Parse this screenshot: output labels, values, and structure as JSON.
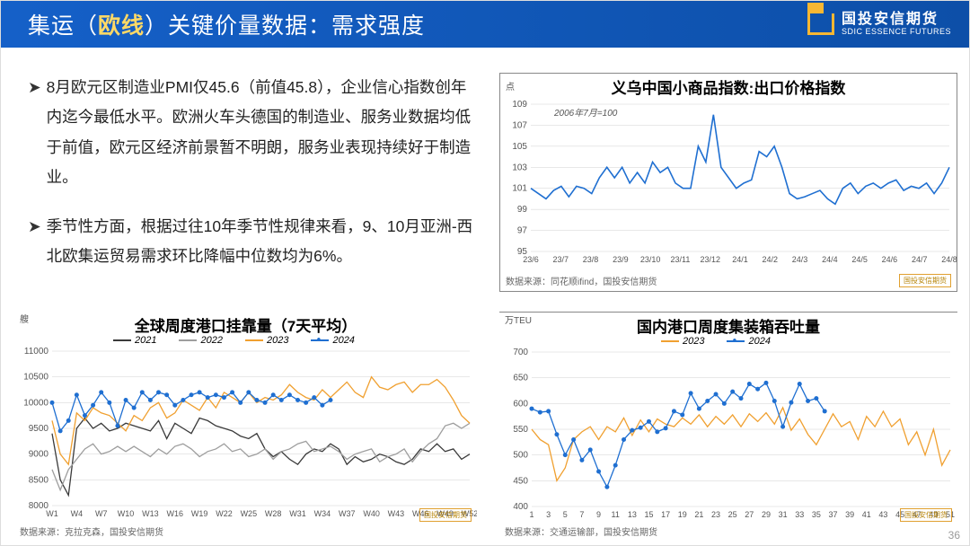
{
  "header": {
    "title_pre": "集运（",
    "title_hl": "欧线",
    "title_post": "）关键价量数据：需求强度",
    "logo_cn": "国投安信期货",
    "logo_en": "SDIC ESSENCE FUTURES"
  },
  "bullets": [
    "8月欧元区制造业PMI仅45.6（前值45.8），企业信心指数创年内迄今最低水平。欧洲火车头德国的制造业、服务业数据均低于前值，欧元区经济前景暂不明朗，服务业表现持续好于制造业。",
    "季节性方面，根据过往10年季节性规律来看，9、10月亚洲-西北欧集运贸易需求环比降幅中位数均为6%。"
  ],
  "chart1": {
    "type": "line",
    "title": "义乌中国小商品指数:出口价格指数",
    "y_unit": "点",
    "sub": "2006年7月=100",
    "source": "数据来源：同花顺ifind，国投安信期货",
    "mini_logo": "国投安信期货",
    "x_labels": [
      "23/6",
      "23/7",
      "23/8",
      "23/9",
      "23/10",
      "23/11",
      "23/12",
      "24/1",
      "24/2",
      "24/3",
      "24/4",
      "24/5",
      "24/6",
      "24/7",
      "24/8"
    ],
    "ylim": [
      95,
      109
    ],
    "ytick_step": 2,
    "series_color": "#1f6fd1",
    "line_width": 1.6,
    "grid_color": "#d0d0d0",
    "values": [
      101,
      100.5,
      100,
      100.8,
      101.2,
      100.2,
      101.2,
      101,
      100.5,
      102,
      103,
      102,
      103,
      101.5,
      102.5,
      101.5,
      103.5,
      102.5,
      103,
      101.5,
      101,
      101,
      105,
      103.5,
      108,
      103,
      102,
      101,
      101.5,
      101.8,
      104.5,
      104,
      105,
      103,
      100.5,
      100,
      100.2,
      100.5,
      100.8,
      100,
      99.5,
      101,
      101.5,
      100.5,
      101.2,
      101.5,
      101,
      101.5,
      101.8,
      100.8,
      101.2,
      101,
      101.5,
      100.5,
      101.5,
      103
    ]
  },
  "chart2": {
    "type": "line",
    "title": "全球周度港口挂靠量（7天平均）",
    "y_unit": "艘",
    "source": "数据来源：克拉克森，国投安信期货",
    "mini_logo": "国投安信期货",
    "x_labels": [
      "W1",
      "W4",
      "W7",
      "W10",
      "W13",
      "W16",
      "W19",
      "W22",
      "W25",
      "W28",
      "W31",
      "W34",
      "W37",
      "W40",
      "W43",
      "W46",
      "W49",
      "W52"
    ],
    "ylim": [
      8000,
      11000
    ],
    "ytick_step": 500,
    "grid_color": "#d0d0d0",
    "legend": [
      {
        "label": "2021",
        "color": "#3a3a3a",
        "marker": false
      },
      {
        "label": "2022",
        "color": "#9e9e9e",
        "marker": false
      },
      {
        "label": "2023",
        "color": "#f0a030",
        "marker": false
      },
      {
        "label": "2024",
        "color": "#1f6fd1",
        "marker": true
      }
    ],
    "series": {
      "2021": [
        9400,
        8500,
        8200,
        9500,
        9700,
        9500,
        9600,
        9450,
        9500,
        9600,
        9550,
        9500,
        9450,
        9650,
        9300,
        9600,
        9500,
        9400,
        9700,
        9650,
        9550,
        9500,
        9450,
        9350,
        9300,
        9400,
        9100,
        8950,
        9050,
        8900,
        8800,
        9000,
        9100,
        9050,
        9200,
        9100,
        8800,
        8950,
        8850,
        8900,
        9000,
        8950,
        8850,
        8800,
        8900,
        9100,
        9050,
        9200,
        9050,
        9100,
        8900,
        9000
      ],
      "2022": [
        8700,
        8300,
        8700,
        8900,
        9100,
        9200,
        9000,
        9050,
        9150,
        9050,
        9150,
        9050,
        8950,
        9100,
        9000,
        9150,
        9200,
        9100,
        8950,
        9050,
        9100,
        9200,
        9050,
        9100,
        8950,
        9000,
        9100,
        8900,
        9050,
        9100,
        9200,
        9250,
        9050,
        9100,
        9150,
        9050,
        8900,
        9000,
        9050,
        9100,
        8850,
        8950,
        9000,
        9100,
        8850,
        9050,
        9200,
        9300,
        9550,
        9600,
        9500,
        9600
      ],
      "2023": [
        9650,
        9000,
        8800,
        9800,
        9650,
        9900,
        9800,
        9750,
        9600,
        9450,
        9750,
        9650,
        9900,
        10000,
        9700,
        9800,
        10050,
        9950,
        9850,
        10100,
        9900,
        10200,
        10100,
        10000,
        10200,
        10000,
        10100,
        10050,
        10150,
        10350,
        10200,
        10100,
        10050,
        10250,
        10100,
        10250,
        10400,
        10200,
        10100,
        10500,
        10300,
        10250,
        10350,
        10400,
        10200,
        10350,
        10350,
        10450,
        10300,
        10050,
        9750,
        9600
      ],
      "2024": [
        10000,
        9450,
        9650,
        10150,
        9750,
        9950,
        10200,
        10000,
        9550,
        10050,
        9900,
        10200,
        10050,
        10200,
        10150,
        9950,
        10050,
        10150,
        10200,
        10100,
        10150,
        10100,
        10200,
        10000,
        10200,
        10050,
        10000,
        10150,
        10050,
        10150,
        10050,
        10000,
        10100,
        9950,
        10050
      ]
    }
  },
  "chart3": {
    "type": "line",
    "title": "国内港口周度集装箱吞吐量",
    "y_unit": "万TEU",
    "source": "数据来源：交通运输部，国投安信期货",
    "mini_logo": "国投安信期货",
    "x_labels": [
      "1",
      "3",
      "5",
      "7",
      "9",
      "11",
      "13",
      "15",
      "17",
      "19",
      "21",
      "23",
      "25",
      "27",
      "29",
      "31",
      "33",
      "35",
      "37",
      "39",
      "41",
      "43",
      "45",
      "47",
      "49",
      "51"
    ],
    "ylim": [
      400,
      700
    ],
    "ytick_step": 50,
    "grid_color": "#d0d0d0",
    "legend": [
      {
        "label": "2023",
        "color": "#f0a030",
        "marker": false
      },
      {
        "label": "2024",
        "color": "#1f6fd1",
        "marker": true
      }
    ],
    "series": {
      "2023": [
        550,
        530,
        520,
        450,
        475,
        530,
        545,
        555,
        530,
        555,
        545,
        572,
        538,
        568,
        545,
        570,
        560,
        555,
        572,
        560,
        578,
        555,
        575,
        560,
        578,
        555,
        580,
        565,
        582,
        560,
        592,
        548,
        570,
        540,
        520,
        550,
        580,
        555,
        565,
        530,
        575,
        555,
        585,
        555,
        570,
        520,
        545,
        500,
        550,
        480,
        510
      ],
      "2024": [
        590,
        583,
        585,
        540,
        500,
        530,
        490,
        510,
        468,
        438,
        480,
        530,
        548,
        553,
        565,
        545,
        552,
        585,
        578,
        620,
        590,
        605,
        618,
        600,
        623,
        610,
        638,
        628,
        640,
        605,
        555,
        602,
        638,
        605,
        610,
        585
      ]
    }
  },
  "page_number": "36"
}
